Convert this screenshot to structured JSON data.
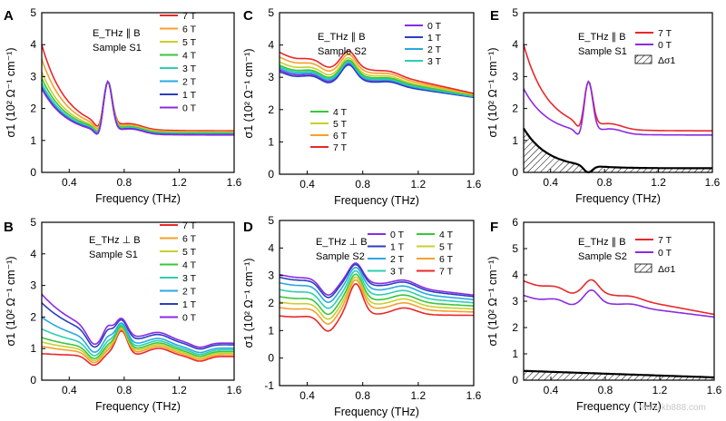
{
  "figure": {
    "watermark": "www.kb888.com"
  },
  "chart_data": [
    {
      "id": "A",
      "panel_label": "A",
      "type": "line",
      "xlabel": "Frequency (THz)",
      "ylabel": "σ1 (10² Ω⁻¹ cm⁻¹)",
      "xlim": [
        0.2,
        1.6
      ],
      "ylim": [
        0,
        5
      ],
      "xticks": [
        "0.4",
        "0.8",
        "1.2",
        "1.6"
      ],
      "yticks": [
        "0",
        "1",
        "2",
        "3",
        "4",
        "5"
      ],
      "annotation": [
        "E_THz ∥ B",
        "Sample S1"
      ],
      "legend_position": "top-right",
      "series": [
        {
          "name": "7 T",
          "color": "#e8282b",
          "low": 4.0,
          "shape": "s1par",
          "base": 1.3
        },
        {
          "name": "6 T",
          "color": "#f5a02a",
          "low": 3.55,
          "shape": "s1par",
          "base": 1.27
        },
        {
          "name": "5 T",
          "color": "#c9cf2c",
          "low": 3.15,
          "shape": "s1par",
          "base": 1.25
        },
        {
          "name": "4 T",
          "color": "#39c63c",
          "low": 2.95,
          "shape": "s1par",
          "base": 1.23
        },
        {
          "name": "3 T",
          "color": "#2fcfb0",
          "low": 2.8,
          "shape": "s1par",
          "base": 1.21
        },
        {
          "name": "2 T",
          "color": "#2aa8e2",
          "low": 2.7,
          "shape": "s1par",
          "base": 1.19
        },
        {
          "name": "1 T",
          "color": "#2a3fbf",
          "low": 2.65,
          "shape": "s1par",
          "base": 1.18
        },
        {
          "name": "0 T",
          "color": "#8a2be2",
          "low": 2.62,
          "shape": "s1par",
          "base": 1.17
        }
      ]
    },
    {
      "id": "B",
      "panel_label": "B",
      "type": "line",
      "xlabel": "Frequency (THz)",
      "ylabel": "σ1 (10² Ω⁻¹ cm⁻¹)",
      "xlim": [
        0.2,
        1.6
      ],
      "ylim": [
        0,
        5
      ],
      "xticks": [
        "0.4",
        "0.8",
        "1.2",
        "1.6"
      ],
      "yticks": [
        "0",
        "1",
        "2",
        "3",
        "4",
        "5"
      ],
      "annotation": [
        "E_THz ⊥ B",
        "Sample S1"
      ],
      "legend_position": "top-right",
      "series": [
        {
          "name": "7 T",
          "color": "#e8282b",
          "low": 0.85,
          "shape": "s1perp",
          "base": 0.75
        },
        {
          "name": "6 T",
          "color": "#f5a02a",
          "low": 1.1,
          "shape": "s1perp",
          "base": 0.8
        },
        {
          "name": "5 T",
          "color": "#c9cf2c",
          "low": 1.25,
          "shape": "s1perp",
          "base": 0.85
        },
        {
          "name": "4 T",
          "color": "#39c63c",
          "low": 1.4,
          "shape": "s1perp",
          "base": 0.9
        },
        {
          "name": "3 T",
          "color": "#2fcfb0",
          "low": 1.7,
          "shape": "s1perp",
          "base": 0.95
        },
        {
          "name": "2 T",
          "color": "#2aa8e2",
          "low": 2.1,
          "shape": "s1perp",
          "base": 1.0
        },
        {
          "name": "1 T",
          "color": "#2a3fbf",
          "low": 2.6,
          "shape": "s1perp",
          "base": 1.1
        },
        {
          "name": "0 T",
          "color": "#8a2be2",
          "low": 2.9,
          "shape": "s1perp",
          "base": 1.15
        }
      ]
    },
    {
      "id": "C",
      "panel_label": "C",
      "type": "line",
      "xlabel": "Frequency (THz)",
      "ylabel": "σ1 (10² Ω⁻¹ cm⁻¹)",
      "xlim": [
        0.2,
        1.6
      ],
      "ylim": [
        0,
        5
      ],
      "xticks": [
        "0.4",
        "0.8",
        "1.2",
        "1.6"
      ],
      "yticks": [
        "0",
        "1",
        "2",
        "3",
        "4",
        "5"
      ],
      "annotation": [
        "E_THz ∥ B",
        "Sample S2"
      ],
      "legend_position": "top-right and lower-left",
      "series": [
        {
          "name": "0 T",
          "color": "#8a2be2",
          "low": 3.3,
          "shape": "s2par",
          "base": 2.4
        },
        {
          "name": "1 T",
          "color": "#2a3fbf",
          "low": 3.25,
          "shape": "s2par",
          "base": 2.38
        },
        {
          "name": "2 T",
          "color": "#2aa8e2",
          "low": 3.35,
          "shape": "s2par",
          "base": 2.4
        },
        {
          "name": "3 T",
          "color": "#2fcfb0",
          "low": 3.4,
          "shape": "s2par",
          "base": 2.42
        },
        {
          "name": "4 T",
          "color": "#39c63c",
          "low": 3.45,
          "shape": "s2par",
          "base": 2.44
        },
        {
          "name": "5 T",
          "color": "#c9cf2c",
          "low": 3.55,
          "shape": "s2par",
          "base": 2.46
        },
        {
          "name": "6 T",
          "color": "#f5a02a",
          "low": 3.7,
          "shape": "s2par",
          "base": 2.48
        },
        {
          "name": "7 T",
          "color": "#e8282b",
          "low": 3.85,
          "shape": "s2par",
          "base": 2.5
        }
      ]
    },
    {
      "id": "D",
      "panel_label": "D",
      "type": "line",
      "xlabel": "Frequency (THz)",
      "ylabel": "σ1 (10² Ω⁻¹ cm⁻¹)",
      "xlim": [
        0.2,
        1.6
      ],
      "ylim": [
        -1,
        5
      ],
      "xticks": [
        "0.4",
        "0.8",
        "1.2",
        "1.6"
      ],
      "yticks": [
        "-1",
        "0",
        "1",
        "2",
        "3",
        "4",
        "5"
      ],
      "annotation": [
        "E_THz ⊥ B",
        "Sample S2"
      ],
      "legend_position": "top-right",
      "series": [
        {
          "name": "0 T",
          "color": "#8a2be2",
          "low": 3.1,
          "shape": "s2perp",
          "base": 2.2
        },
        {
          "name": "1 T",
          "color": "#2a3fbf",
          "low": 3.0,
          "shape": "s2perp",
          "base": 2.15
        },
        {
          "name": "2 T",
          "color": "#2aa8e2",
          "low": 2.8,
          "shape": "s2perp",
          "base": 2.05
        },
        {
          "name": "3 T",
          "color": "#2fcfb0",
          "low": 2.55,
          "shape": "s2perp",
          "base": 1.95
        },
        {
          "name": "4 T",
          "color": "#39c63c",
          "low": 2.3,
          "shape": "s2perp",
          "base": 1.85
        },
        {
          "name": "5 T",
          "color": "#c9cf2c",
          "low": 2.1,
          "shape": "s2perp",
          "base": 1.75
        },
        {
          "name": "6 T",
          "color": "#f5a02a",
          "low": 1.9,
          "shape": "s2perp",
          "base": 1.65
        },
        {
          "name": "7 T",
          "color": "#e8282b",
          "low": 1.6,
          "shape": "s2perp",
          "base": 1.55
        }
      ]
    },
    {
      "id": "E",
      "panel_label": "E",
      "type": "line",
      "xlabel": "Frequency (THz)",
      "ylabel": "σ1 (10² Ω⁻¹ cm⁻¹)",
      "xlim": [
        0.2,
        1.6
      ],
      "ylim": [
        0,
        5
      ],
      "xticks": [
        "0.4",
        "0.8",
        "1.2",
        "1.6"
      ],
      "yticks": [
        "0",
        "1",
        "2",
        "3",
        "4",
        "5"
      ],
      "annotation": [
        "E_THz ∥ B",
        "Sample S1"
      ],
      "legend_position": "top-right",
      "series": [
        {
          "name": "7 T",
          "color": "#e8282b",
          "low": 4.0,
          "shape": "s1par",
          "base": 1.3
        },
        {
          "name": "0 T",
          "color": "#8a2be2",
          "low": 2.62,
          "shape": "s1par",
          "base": 1.17
        }
      ],
      "difference": {
        "name": "Δσ1",
        "of": [
          "7 T",
          "0 T"
        ],
        "fill": "hatched"
      }
    },
    {
      "id": "F",
      "panel_label": "F",
      "type": "line",
      "xlabel": "Frequency (THz)",
      "ylabel": "σ1 (10² Ω⁻¹ cm⁻¹)",
      "xlim": [
        0.2,
        1.6
      ],
      "ylim": [
        0,
        6
      ],
      "xticks": [
        "0.4",
        "0.8",
        "1.2",
        "1.6"
      ],
      "yticks": [
        "0",
        "1",
        "2",
        "3",
        "4",
        "5",
        "6"
      ],
      "annotation": [
        "E_THz ∥ B",
        "Sample S2"
      ],
      "legend_position": "top-right",
      "series": [
        {
          "name": "7 T",
          "color": "#e8282b",
          "low": 3.85,
          "shape": "s2par",
          "base": 2.5
        },
        {
          "name": "0 T",
          "color": "#8a2be2",
          "low": 3.3,
          "shape": "s2par",
          "base": 2.4
        }
      ],
      "difference": {
        "name": "Δσ1",
        "of": [
          "7 T",
          "0 T"
        ],
        "fill": "hatched"
      }
    }
  ]
}
